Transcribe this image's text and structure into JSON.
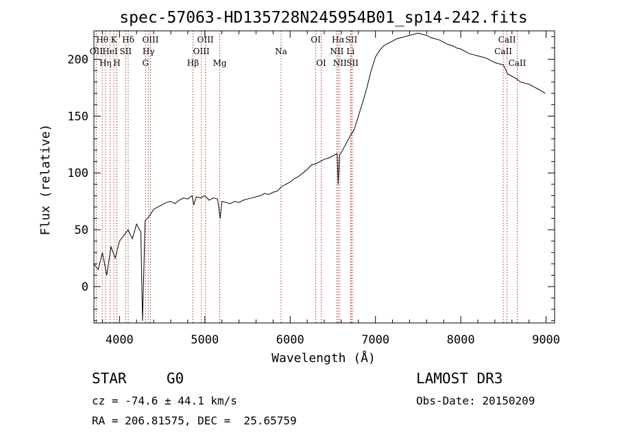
{
  "chart_data": {
    "type": "line",
    "title": "spec-57063-HD135728N245954B01_sp14-242.fits",
    "xlabel": "Wavelength (Å)",
    "ylabel": "Flux (relative)",
    "xlim": [
      3700,
      9100
    ],
    "ylim": [
      -32,
      225
    ],
    "x_ticks": [
      4000,
      5000,
      6000,
      7000,
      8000,
      9000
    ],
    "y_ticks": [
      0,
      50,
      100,
      150,
      200
    ],
    "grid": false,
    "series": [
      {
        "name": "flux",
        "x": [
          3700,
          3750,
          3800,
          3850,
          3900,
          3950,
          4000,
          4050,
          4100,
          4150,
          4200,
          4250,
          4270,
          4300,
          4350,
          4400,
          4450,
          4500,
          4550,
          4600,
          4650,
          4700,
          4750,
          4800,
          4850,
          4870,
          4900,
          4950,
          5000,
          5050,
          5100,
          5150,
          5180,
          5200,
          5250,
          5300,
          5350,
          5400,
          5450,
          5500,
          5550,
          5600,
          5650,
          5700,
          5750,
          5800,
          5850,
          5900,
          5950,
          6000,
          6050,
          6100,
          6150,
          6200,
          6250,
          6300,
          6350,
          6400,
          6450,
          6500,
          6550,
          6563,
          6580,
          6600,
          6650,
          6700,
          6750,
          6800,
          6850,
          6900,
          6950,
          7000,
          7050,
          7100,
          7150,
          7200,
          7250,
          7300,
          7350,
          7400,
          7450,
          7500,
          7550,
          7600,
          7650,
          7700,
          7750,
          7800,
          7850,
          7900,
          7950,
          8000,
          8050,
          8100,
          8150,
          8200,
          8250,
          8300,
          8350,
          8400,
          8450,
          8500,
          8550,
          8600,
          8650,
          8700,
          8750,
          8800,
          8850,
          8900,
          8950,
          8990
        ],
        "y": [
          20,
          15,
          30,
          10,
          35,
          25,
          40,
          45,
          50,
          42,
          55,
          48,
          -30,
          58,
          62,
          68,
          70,
          72,
          74,
          75,
          73,
          76,
          78,
          77,
          80,
          72,
          79,
          78,
          80,
          76,
          78,
          77,
          60,
          75,
          74,
          73,
          75,
          74,
          76,
          77,
          78,
          79,
          80,
          82,
          81,
          83,
          84,
          88,
          90,
          92,
          95,
          97,
          100,
          103,
          107,
          108,
          110,
          112,
          113,
          115,
          117,
          90,
          116,
          118,
          125,
          132,
          138,
          150,
          162,
          175,
          190,
          202,
          208,
          212,
          214,
          216,
          218,
          219,
          220,
          221,
          222,
          223,
          222,
          221,
          219,
          218,
          217,
          215,
          213,
          212,
          210,
          209,
          207,
          205,
          204,
          203,
          202,
          201,
          199,
          197,
          196,
          195,
          187,
          185,
          183,
          180,
          179,
          178,
          176,
          174,
          172,
          170
        ]
      }
    ],
    "lines": [
      {
        "label": "Hθ",
        "wl": 3798,
        "row": 1
      },
      {
        "label": "OII",
        "wl": 3727,
        "row": 2
      },
      {
        "label": "Hη",
        "wl": 3835,
        "row": 3
      },
      {
        "label": "K",
        "wl": 3934,
        "row": 1
      },
      {
        "label": "HeI",
        "wl": 3889,
        "row": 2
      },
      {
        "label": "H",
        "wl": 3969,
        "row": 3
      },
      {
        "label": "Hδ",
        "wl": 4102,
        "row": 1
      },
      {
        "label": "SII",
        "wl": 4072,
        "row": 2
      },
      {
        "label": "OIII",
        "wl": 4363,
        "row": 1
      },
      {
        "label": "Hγ",
        "wl": 4340,
        "row": 2
      },
      {
        "label": "G",
        "wl": 4305,
        "row": 3
      },
      {
        "label": "Hβ",
        "wl": 4861,
        "row": 3
      },
      {
        "label": "OIII",
        "wl": 5007,
        "row": 1
      },
      {
        "label": "OIII",
        "wl": 4959,
        "row": 2
      },
      {
        "label": "Mg",
        "wl": 5175,
        "row": 3
      },
      {
        "label": "Na",
        "wl": 5893,
        "row": 2
      },
      {
        "label": "OI",
        "wl": 6300,
        "row": 1
      },
      {
        "label": "OI",
        "wl": 6364,
        "row": 3
      },
      {
        "label": "Hα",
        "wl": 6563,
        "row": 1
      },
      {
        "label": "NII",
        "wl": 6548,
        "row": 2
      },
      {
        "label": "NII",
        "wl": 6583,
        "row": 3
      },
      {
        "label": "SII",
        "wl": 6717,
        "row": 1
      },
      {
        "label": "Li",
        "wl": 6708,
        "row": 2
      },
      {
        "label": "SII",
        "wl": 6731,
        "row": 3
      },
      {
        "label": "CaII",
        "wl": 8542,
        "row": 1
      },
      {
        "label": "CaII",
        "wl": 8498,
        "row": 2
      },
      {
        "label": "CaII",
        "wl": 8662,
        "row": 3
      }
    ]
  },
  "info": {
    "object_class": "STAR",
    "subclass": "G0",
    "survey": "LAMOST DR3",
    "cz": "cz = -74.6 ± 44.1 km/s",
    "obs_date": "Obs-Date: 20150209",
    "coords": "RA = 206.81575, DEC =  25.65759"
  }
}
